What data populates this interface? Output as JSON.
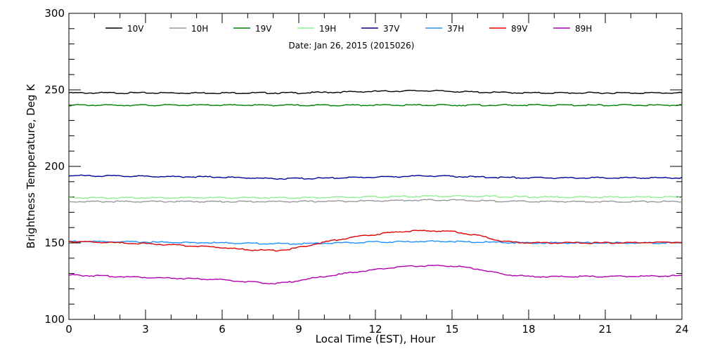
{
  "chart_data": {
    "type": "line",
    "title": "",
    "annotation": "Date: Jan 26, 2015 (2015026)",
    "xlabel": "Local Time (EST), Hour",
    "ylabel": "Brightness Temperature, Deg K",
    "xlim": [
      0,
      24
    ],
    "ylim": [
      100,
      300
    ],
    "xticks": [
      0,
      3,
      6,
      9,
      12,
      15,
      18,
      21,
      24
    ],
    "yticks": [
      100,
      150,
      200,
      250,
      300
    ],
    "grid": false,
    "legend_position": "top",
    "series": [
      {
        "name": "10V",
        "color": "#000000",
        "x": [
          0,
          3,
          6,
          8,
          9,
          12,
          14,
          15,
          16,
          18,
          21,
          24
        ],
        "y": [
          248,
          248,
          248,
          248,
          248,
          249,
          249.5,
          249,
          248.5,
          248,
          248,
          248
        ]
      },
      {
        "name": "10H",
        "color": "#999999",
        "x": [
          0,
          3,
          6,
          8,
          9,
          12,
          14,
          15,
          16,
          18,
          21,
          24
        ],
        "y": [
          177,
          177,
          177,
          177,
          177,
          177.5,
          178,
          178,
          177.5,
          177,
          177,
          177
        ]
      },
      {
        "name": "19V",
        "color": "#008000",
        "x": [
          0,
          3,
          6,
          8,
          9,
          12,
          14,
          15,
          16,
          18,
          21,
          24
        ],
        "y": [
          240,
          240,
          240,
          240,
          240,
          240,
          240,
          240,
          240,
          240,
          240,
          240
        ]
      },
      {
        "name": "19H",
        "color": "#90ee90",
        "x": [
          0,
          3,
          6,
          8,
          9,
          12,
          14,
          15,
          16,
          18,
          21,
          24
        ],
        "y": [
          179.5,
          179.5,
          179.5,
          179.5,
          179.5,
          180,
          180.5,
          180.5,
          180.5,
          180,
          180,
          180
        ]
      },
      {
        "name": "37V",
        "color": "#000099",
        "x": [
          0,
          3,
          6,
          8,
          9,
          12,
          14,
          15,
          16,
          18,
          21,
          24
        ],
        "y": [
          194,
          193.5,
          193,
          192,
          192,
          193,
          193.8,
          193.5,
          193,
          192.5,
          192.5,
          192.5
        ]
      },
      {
        "name": "37H",
        "color": "#1e90ff",
        "x": [
          0,
          3,
          6,
          8,
          9,
          12,
          14,
          15,
          16,
          18,
          21,
          24
        ],
        "y": [
          151,
          150.5,
          150,
          149.5,
          149.5,
          150.5,
          151,
          151,
          150.5,
          150,
          150,
          150
        ]
      },
      {
        "name": "89V",
        "color": "#dd0000",
        "x": [
          0,
          3,
          6,
          7,
          8,
          8.5,
          9,
          10,
          11,
          12,
          13,
          14,
          15,
          16,
          17,
          18,
          21,
          24
        ],
        "y": [
          151,
          149.5,
          147,
          145.5,
          145,
          145.5,
          147,
          150.5,
          153.5,
          155.5,
          157.5,
          158,
          157.5,
          155,
          151,
          150,
          150,
          150.5
        ]
      },
      {
        "name": "89H",
        "color": "#b000b0",
        "x": [
          0,
          3,
          6,
          7,
          8,
          8.5,
          9,
          10,
          11,
          12,
          13,
          14,
          15,
          16,
          17,
          18,
          21,
          24
        ],
        "y": [
          129,
          127.5,
          126,
          124.5,
          123.5,
          124,
          125.5,
          128,
          130.5,
          132.5,
          134.5,
          135,
          135,
          133,
          129.5,
          128,
          128,
          128.5
        ]
      }
    ]
  }
}
